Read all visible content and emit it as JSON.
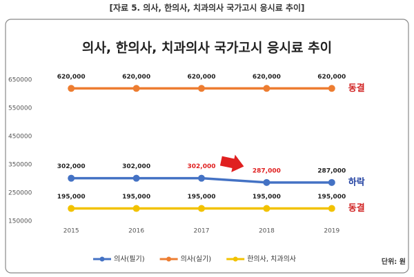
{
  "caption": "[자료 5. 의사, 한의사, 치과의사 국가고시 응시료 추이]",
  "chart_data": {
    "type": "line",
    "title": "의사, 한의사, 치과의사 국가고시 응시료 추이",
    "categories": [
      "2015",
      "2016",
      "2017",
      "2018",
      "2019"
    ],
    "series": [
      {
        "name": "의사(필기)",
        "color": "#4472c4",
        "values": [
          302000,
          302000,
          302000,
          287000,
          287000
        ],
        "value_labels": [
          "302,000",
          "302,000",
          "302,000",
          "287,000",
          "287,000"
        ],
        "value_label_colors": [
          "#222",
          "#222",
          "#e02020",
          "#e02020",
          "#222"
        ],
        "end_label": "하락",
        "end_label_color": "#1f3fa0"
      },
      {
        "name": "의사(실기)",
        "color": "#ed7d31",
        "values": [
          620000,
          620000,
          620000,
          620000,
          620000
        ],
        "value_labels": [
          "620,000",
          "620,000",
          "620,000",
          "620,000",
          "620,000"
        ],
        "value_label_colors": [
          "#222",
          "#222",
          "#222",
          "#222",
          "#222"
        ],
        "end_label": "동결",
        "end_label_color": "#d02020"
      },
      {
        "name": "한의사, 치과의사",
        "color": "#f2c200",
        "values": [
          195000,
          195000,
          195000,
          195000,
          195000
        ],
        "value_labels": [
          "195,000",
          "195,000",
          "195,000",
          "195,000",
          "195,000"
        ],
        "value_label_colors": [
          "#222",
          "#222",
          "#222",
          "#222",
          "#222"
        ],
        "end_label": "동결",
        "end_label_color": "#d02020"
      }
    ],
    "ylim": [
      150000,
      650000
    ],
    "yticks": [
      150000,
      250000,
      350000,
      450000,
      550000,
      650000
    ],
    "grid": false,
    "legend": "bottom",
    "unit_note": "단위: 원"
  }
}
